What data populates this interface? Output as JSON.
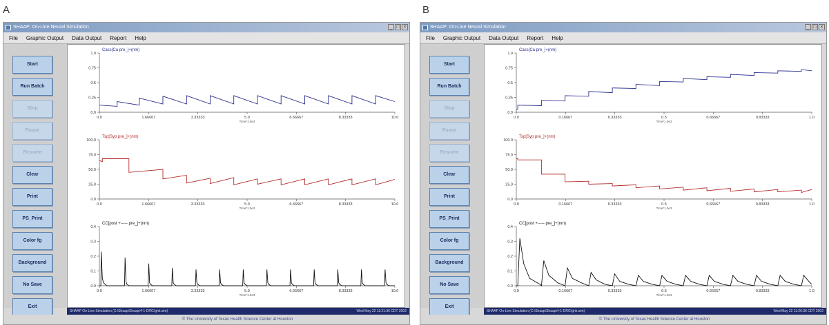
{
  "panels": [
    {
      "letter": "A",
      "title": "SHAAP: On-Line Neural Simulation",
      "menu": [
        "File",
        "Graphic Output",
        "Data Output",
        "Report",
        "Help"
      ],
      "buttons": [
        {
          "label": "Start",
          "enabled": true
        },
        {
          "label": "Run Batch",
          "enabled": true
        },
        {
          "label": "Stop",
          "enabled": false
        },
        {
          "label": "Pause",
          "enabled": false
        },
        {
          "label": "Resume",
          "enabled": false
        },
        {
          "label": "Clear",
          "enabled": true
        },
        {
          "label": "Print",
          "enabled": true
        },
        {
          "label": "PS_Print",
          "enabled": true
        },
        {
          "label": "Color fg",
          "enabled": true
        },
        {
          "label": "Background",
          "enabled": true
        },
        {
          "label": "No Save",
          "enabled": true
        },
        {
          "label": "Exit",
          "enabled": true
        }
      ],
      "status_left": "SHAAP On-Line Simulation (C:\\Shaap\\Shaap\\4-1-DRG\\ghk.sim)",
      "status_right": "Wed May 22 11:21:36 CDT 2002",
      "footer": "© The University of Texas Health Science Center at Houston",
      "chart_data": [
        {
          "type": "line",
          "title": "Cass[Ca pre_]+(nm)",
          "color": "#2b2f8c",
          "xlim": [
            0,
            10
          ],
          "ylim": [
            0,
            1.0
          ],
          "yticks": [
            "1.0",
            "0.75",
            "0.5",
            "0.25",
            "0.0"
          ],
          "xticks": [
            "0.0",
            "1.66667",
            "3.33333",
            "5.0",
            "6.66667",
            "8.33333",
            "10.0"
          ],
          "xlabel": "Time*1.0e3",
          "x": [
            0,
            0.6,
            0.6,
            1.35,
            1.35,
            2.15,
            2.15,
            2.95,
            2.95,
            3.75,
            3.75,
            4.55,
            4.55,
            5.35,
            5.35,
            6.15,
            6.15,
            6.95,
            6.95,
            7.75,
            7.75,
            8.55,
            8.55,
            9.35,
            9.35,
            10.0
          ],
          "y": [
            0.12,
            0.1,
            0.18,
            0.12,
            0.24,
            0.14,
            0.27,
            0.14,
            0.28,
            0.14,
            0.28,
            0.14,
            0.28,
            0.14,
            0.28,
            0.14,
            0.28,
            0.14,
            0.28,
            0.14,
            0.28,
            0.14,
            0.28,
            0.14,
            0.28,
            0.18
          ]
        },
        {
          "type": "line",
          "title": "Tsp[Syp pre_]+(nm)",
          "color": "#b22a2a",
          "xlim": [
            0,
            10
          ],
          "ylim": [
            0,
            100
          ],
          "yticks": [
            "100.0",
            "75.0",
            "50.0",
            "25.0",
            "0.0"
          ],
          "xticks": [
            "0.0",
            "1.66667",
            "3.33333",
            "5.0",
            "6.66667",
            "8.33333",
            "10.0"
          ],
          "xlabel": "Time*1.0e3",
          "x": [
            0,
            0.1,
            0.1,
            1.0,
            1.0,
            2.15,
            2.15,
            2.95,
            2.95,
            3.75,
            3.75,
            4.55,
            4.55,
            5.35,
            5.35,
            6.15,
            6.15,
            6.95,
            6.95,
            7.75,
            7.75,
            8.55,
            8.55,
            9.35,
            9.35,
            10.0
          ],
          "y": [
            65,
            63,
            68,
            68,
            45,
            50,
            34,
            40,
            27,
            35,
            26,
            36,
            24,
            34,
            25,
            34,
            24,
            34,
            24,
            34,
            24,
            34,
            24,
            34,
            24,
            33
          ]
        },
        {
          "type": "line",
          "title": "CC[post +----- pre_]+(nm)",
          "color": "#111111",
          "xlim": [
            0,
            10
          ],
          "ylim": [
            0,
            0.4
          ],
          "yticks": [
            "0.4",
            "0.3",
            "0.2",
            "0.1",
            "0.0"
          ],
          "xticks": [
            "0.0",
            "1.66667",
            "3.33333",
            "5.0",
            "6.66667",
            "8.33333",
            "10.0"
          ],
          "xlabel": "Time*1.0e3",
          "x": [
            0,
            0.05,
            0.06,
            0.1,
            0.14,
            0.25,
            0.85,
            0.87,
            0.9,
            0.93,
            1.0,
            1.65,
            1.67,
            1.7,
            1.73,
            1.8,
            2.45,
            2.47,
            2.5,
            2.53,
            2.6,
            3.25,
            3.27,
            3.3,
            3.33,
            3.4,
            4.05,
            4.07,
            4.1,
            4.13,
            4.2,
            4.85,
            4.87,
            4.9,
            4.93,
            5.0,
            5.65,
            5.67,
            5.7,
            5.73,
            5.8,
            6.45,
            6.47,
            6.5,
            6.53,
            6.6,
            7.25,
            7.27,
            7.3,
            7.33,
            7.4,
            8.05,
            8.07,
            8.1,
            8.13,
            8.2,
            8.85,
            8.87,
            8.9,
            8.93,
            9.0,
            9.65,
            9.67,
            9.7,
            9.73,
            9.8,
            10.0
          ],
          "y": [
            0,
            0,
            0.23,
            0.05,
            0.02,
            0,
            0,
            0.19,
            0.03,
            0.01,
            0,
            0,
            0.15,
            0.02,
            0.01,
            0,
            0,
            0.12,
            0.02,
            0.01,
            0,
            0,
            0.11,
            0.02,
            0.01,
            0,
            0,
            0.11,
            0.02,
            0.01,
            0,
            0,
            0.11,
            0.02,
            0.01,
            0,
            0,
            0.11,
            0.02,
            0.01,
            0,
            0,
            0.11,
            0.02,
            0.01,
            0,
            0,
            0.11,
            0.02,
            0.01,
            0,
            0,
            0.11,
            0.02,
            0.01,
            0,
            0,
            0.11,
            0.02,
            0.01,
            0,
            0,
            0.11,
            0.02,
            0.01,
            0,
            0
          ]
        }
      ]
    },
    {
      "letter": "B",
      "title": "SHAAP: On-Line Neural Simulation",
      "menu": [
        "File",
        "Graphic Output",
        "Data Output",
        "Report",
        "Help"
      ],
      "buttons": [
        {
          "label": "Start",
          "enabled": true
        },
        {
          "label": "Run Batch",
          "enabled": true
        },
        {
          "label": "Stop",
          "enabled": false
        },
        {
          "label": "Pause",
          "enabled": false
        },
        {
          "label": "Resume",
          "enabled": false
        },
        {
          "label": "Clear",
          "enabled": true
        },
        {
          "label": "Print",
          "enabled": true
        },
        {
          "label": "PS_Print",
          "enabled": true
        },
        {
          "label": "Color fg",
          "enabled": true
        },
        {
          "label": "Background",
          "enabled": true
        },
        {
          "label": "No Save",
          "enabled": true
        },
        {
          "label": "Exit",
          "enabled": true
        }
      ],
      "status_left": "SHAAP On-Line Simulation (C:\\Shaap\\Shaap\\4-1-DRG\\ghk.sim)",
      "status_right": "Wed May 22 11:26:36 CDT 2002",
      "footer": "© The University of Texas Health Science Center at Houston",
      "chart_data": [
        {
          "type": "line",
          "title": "Cass[Ca pre_]+(nm)",
          "color": "#2b2f8c",
          "xlim": [
            0,
            1.0
          ],
          "ylim": [
            0,
            1.0
          ],
          "yticks": [
            "1.0",
            "0.75",
            "0.5",
            "0.25",
            "0.0"
          ],
          "xticks": [
            "0.0",
            "0.16667",
            "0.33333",
            "0.5",
            "0.66667",
            "0.83333",
            "1.0"
          ],
          "xlabel": "Time*1.0e3",
          "x": [
            0,
            0.005,
            0.005,
            0.085,
            0.085,
            0.165,
            0.165,
            0.245,
            0.245,
            0.325,
            0.325,
            0.405,
            0.405,
            0.485,
            0.485,
            0.565,
            0.565,
            0.645,
            0.645,
            0.725,
            0.725,
            0.805,
            0.805,
            0.885,
            0.885,
            0.965,
            0.965,
            1.0
          ],
          "y": [
            0.05,
            0.05,
            0.12,
            0.11,
            0.2,
            0.19,
            0.28,
            0.27,
            0.35,
            0.33,
            0.41,
            0.4,
            0.47,
            0.45,
            0.52,
            0.51,
            0.57,
            0.55,
            0.6,
            0.59,
            0.64,
            0.62,
            0.67,
            0.66,
            0.7,
            0.69,
            0.72,
            0.7
          ]
        },
        {
          "type": "line",
          "title": "Tsp[Syp pre_]+(nm)",
          "color": "#b22a2a",
          "xlim": [
            0,
            1.0
          ],
          "ylim": [
            0,
            100
          ],
          "yticks": [
            "100.0",
            "75.0",
            "50.0",
            "25.0",
            "0.0"
          ],
          "xticks": [
            "0.0",
            "0.16667",
            "0.33333",
            "0.5",
            "0.66667",
            "0.83333",
            "1.0"
          ],
          "xlabel": "Time*1.0e3",
          "x": [
            0,
            0.005,
            0.005,
            0.085,
            0.085,
            0.165,
            0.165,
            0.245,
            0.245,
            0.325,
            0.325,
            0.405,
            0.405,
            0.485,
            0.485,
            0.565,
            0.565,
            0.645,
            0.645,
            0.725,
            0.725,
            0.805,
            0.805,
            0.885,
            0.885,
            0.965,
            0.965,
            1.0
          ],
          "y": [
            68,
            68,
            66,
            66,
            42,
            42,
            29,
            30,
            25,
            26,
            22,
            24,
            19,
            22,
            17,
            20,
            15,
            19,
            14,
            18,
            13,
            17,
            12,
            16,
            12,
            15,
            11,
            16
          ]
        },
        {
          "type": "line",
          "title": "CC[post +----- pre_]+(nm)",
          "color": "#111111",
          "xlim": [
            0,
            1.0
          ],
          "ylim": [
            0,
            0.4
          ],
          "yticks": [
            "0.4",
            "0.3",
            "0.2",
            "0.1",
            "0.0"
          ],
          "xticks": [
            "0.0",
            "0.16667",
            "0.33333",
            "0.5",
            "0.66667",
            "0.83333",
            "1.0"
          ],
          "xlabel": "Time*1.0e3",
          "x": [
            0,
            0.005,
            0.012,
            0.025,
            0.045,
            0.08,
            0.085,
            0.093,
            0.11,
            0.14,
            0.165,
            0.173,
            0.19,
            0.22,
            0.245,
            0.253,
            0.27,
            0.3,
            0.325,
            0.333,
            0.35,
            0.38,
            0.405,
            0.413,
            0.43,
            0.46,
            0.485,
            0.493,
            0.51,
            0.54,
            0.565,
            0.573,
            0.59,
            0.62,
            0.645,
            0.653,
            0.67,
            0.7,
            0.725,
            0.733,
            0.75,
            0.78,
            0.805,
            0.813,
            0.83,
            0.86,
            0.885,
            0.893,
            0.91,
            0.94,
            0.965,
            0.973,
            0.99,
            1.0
          ],
          "y": [
            0,
            0,
            0.32,
            0.15,
            0.05,
            0.01,
            0,
            0.17,
            0.07,
            0.02,
            0,
            0.12,
            0.05,
            0.02,
            0,
            0.09,
            0.04,
            0.01,
            0,
            0.08,
            0.03,
            0.01,
            0,
            0.07,
            0.03,
            0.01,
            0,
            0.07,
            0.03,
            0.01,
            0,
            0.07,
            0.03,
            0.01,
            0,
            0.07,
            0.03,
            0.01,
            0,
            0.07,
            0.03,
            0.01,
            0,
            0.07,
            0.03,
            0.01,
            0,
            0.07,
            0.03,
            0.01,
            0,
            0.07,
            0.03,
            0.01
          ]
        }
      ]
    }
  ]
}
